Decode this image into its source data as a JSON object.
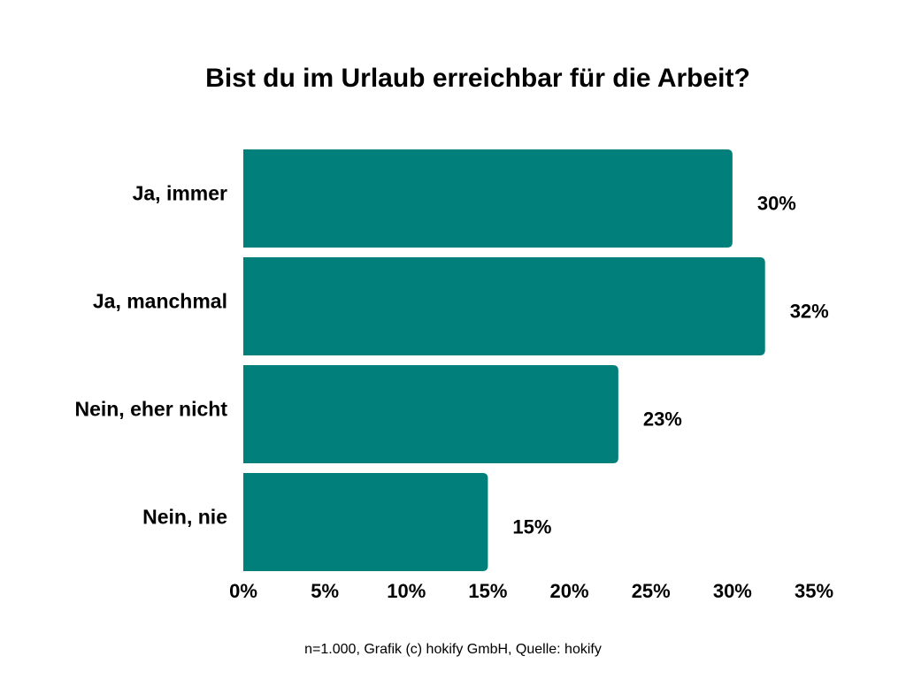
{
  "chart_data": {
    "type": "bar",
    "orientation": "horizontal",
    "title": "Bist du im Urlaub erreichbar für die Arbeit?",
    "categories": [
      "Ja, immer",
      "Ja, manchmal",
      "Nein, eher nicht",
      "Nein, nie"
    ],
    "values": [
      30,
      32,
      23,
      15
    ],
    "value_labels": [
      "30%",
      "32%",
      "23%",
      "15%"
    ],
    "xlim": [
      0,
      35
    ],
    "xticks": [
      0,
      5,
      10,
      15,
      20,
      25,
      30,
      35
    ],
    "xtick_labels": [
      "0%",
      "5%",
      "10%",
      "15%",
      "20%",
      "25%",
      "30%",
      "35%"
    ],
    "xlabel": "",
    "ylabel": "",
    "grid": false,
    "bar_color": "#007F7B",
    "footnote": "n=1.000, Grafik (c) hokify GmbH, Quelle: hokify"
  }
}
